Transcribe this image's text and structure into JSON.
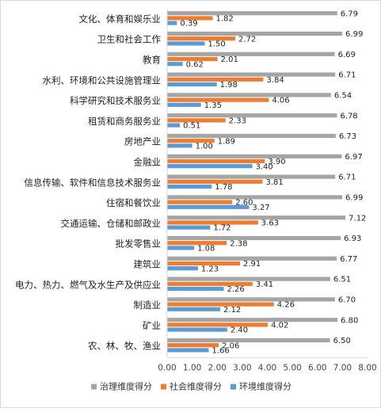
{
  "chart_data": {
    "type": "bar",
    "orientation": "horizontal",
    "categories": [
      "文化、体育和娱乐业",
      "卫生和社会工作",
      "教育",
      "水利、环境和公共设施管理业",
      "科学研究和技术服务业",
      "租赁和商务服务业",
      "房地产业",
      "金融业",
      "信息传输、软件和信息技术服务业",
      "住宿和餐饮业",
      "交通运输、仓储和邮政业",
      "批发零售业",
      "建筑业",
      "电力、热力、燃气及水生产及供应业",
      "制造业",
      "矿业",
      "农、林、牧、渔业"
    ],
    "series": [
      {
        "name": "治理维度得分",
        "color": "#a5a5a5",
        "values": [
          6.79,
          6.99,
          6.69,
          6.71,
          6.54,
          6.78,
          6.73,
          6.97,
          6.71,
          6.99,
          7.12,
          6.93,
          6.77,
          6.51,
          6.7,
          6.8,
          6.5
        ],
        "labels": [
          "6.79",
          "6.99",
          "6.69",
          "6.71",
          "6.54",
          "6.78",
          "6.73",
          "6.97",
          "6.71",
          "6.99",
          "7.12",
          "6.93",
          "6.77",
          "6.51",
          "6.70",
          "6.80",
          "6.50"
        ]
      },
      {
        "name": "社会维度得分",
        "color": "#ed7d31",
        "values": [
          1.82,
          2.72,
          2.01,
          3.84,
          4.06,
          2.33,
          1.89,
          3.9,
          3.81,
          2.6,
          3.63,
          2.38,
          2.91,
          3.41,
          4.26,
          4.02,
          2.06
        ],
        "labels": [
          "1.82",
          "2.72",
          "2.01",
          "3.84",
          "4.06",
          "2.33",
          "1.89",
          "3.90",
          "3.81",
          "2.60",
          "3.63",
          "2.38",
          "2.91",
          "3.41",
          "4.26",
          "4.02",
          "2.06"
        ]
      },
      {
        "name": "环境维度得分",
        "color": "#5b9bd5",
        "values": [
          0.39,
          1.5,
          0.62,
          1.98,
          1.35,
          0.51,
          1.0,
          3.4,
          1.78,
          3.27,
          1.72,
          1.08,
          1.23,
          2.26,
          2.12,
          2.4,
          1.66
        ],
        "labels": [
          "0.39",
          "1.50",
          "0.62",
          "1.98",
          "1.35",
          "0.51",
          "1.00",
          "3.40",
          "1.78",
          "3.27",
          "1.72",
          "1.08",
          "1.23",
          "2.26",
          "2.12",
          "2.40",
          "1.66"
        ]
      }
    ],
    "xlim": [
      0,
      8
    ],
    "xticks": [
      "0.00",
      "1.00",
      "2.00",
      "3.00",
      "4.00",
      "5.00",
      "6.00",
      "7.00",
      "8.00"
    ],
    "grid": false,
    "legend_position": "bottom"
  }
}
